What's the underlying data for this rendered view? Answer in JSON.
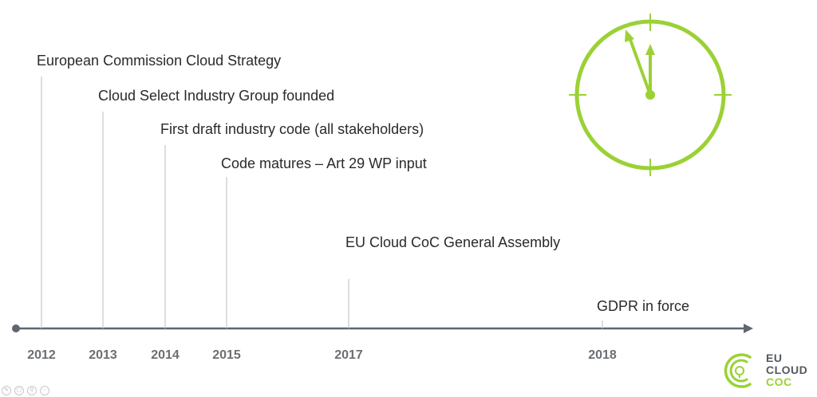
{
  "timeline": {
    "events": [
      {
        "year": "2012",
        "label": "European Commission Cloud Strategy"
      },
      {
        "year": "2013",
        "label": "Cloud Select Industry Group founded"
      },
      {
        "year": "2014",
        "label": "First draft industry code (all stakeholders)"
      },
      {
        "year": "2015",
        "label": "Code matures – Art 29 WP input"
      },
      {
        "year": "2017",
        "label": "EU Cloud CoC General Assembly"
      },
      {
        "year": "2018",
        "label": "GDPR in force"
      }
    ]
  },
  "clock": {
    "color": "#9bd135",
    "icon": "clock-icon"
  },
  "logo": {
    "line1": "EU",
    "line2": "CLOUD",
    "line3": "COC",
    "accent_color": "#9bd135",
    "text_color": "#55595d",
    "icon": "eu-cloud-coc-logo-icon"
  },
  "colors": {
    "axis": "#5f6670",
    "tick": "#c9c9c9",
    "year_text": "#6b6f73"
  }
}
